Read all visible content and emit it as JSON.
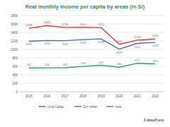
{
  "chart_data": {
    "type": "line",
    "title": "Real monthly income per capita by areas (in S/)",
    "categories": [
      "2015",
      "2016",
      "2017",
      "2018",
      "2019",
      "2020",
      "2021",
      "2022"
    ],
    "series": [
      {
        "name": "Lima Callao",
        "color": "#e03434",
        "values": [
          1498,
          1562,
          1518,
          1520,
          1515,
          1120,
          1218,
          1245
        ]
      },
      {
        "name": "Zon urban",
        "color": "#3f6fb4",
        "values": [
          1192,
          1210,
          1207,
          1232,
          1248,
          1005,
          1141,
          1165
        ]
      },
      {
        "name": "rural",
        "color": "#2f9e74",
        "values": [
          562,
          564,
          567,
          598,
          625,
          580,
          672,
          658
        ]
      }
    ],
    "ylim": [
      0,
      1800
    ],
    "yticks": [
      0,
      200,
      400,
      600,
      800,
      1000,
      1200,
      1400,
      1600,
      1800
    ],
    "grid": true,
    "data_labels": true,
    "legend": "bottom",
    "annotations": [
      "LimaEasy"
    ]
  }
}
